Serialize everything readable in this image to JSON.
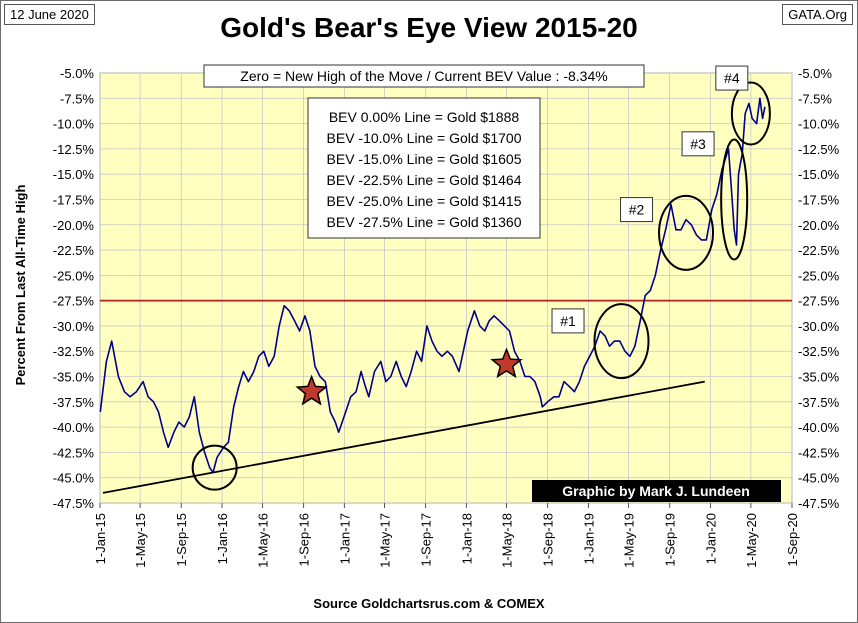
{
  "header": {
    "date": "12 June 2020",
    "site": "GATA.Org",
    "title": "Gold's Bear's Eye View 2015-20",
    "source": "Source Goldchartsrus.com & COMEX"
  },
  "chart_data": {
    "type": "line",
    "title": "Gold's Bear's Eye View 2015-20",
    "ylabel": "Percent  From  Last  All-Time  High",
    "xlabel": "",
    "ylim": [
      -47.5,
      -5.0
    ],
    "xlim": [
      "2015-01-01",
      "2020-09-01"
    ],
    "grid": true,
    "colors": {
      "plot_bg": "#ffffc0",
      "series": "#00008b",
      "reference_line": "#b22222",
      "trend": "#000000",
      "star": "#c0392b",
      "credit_bg": "#000000",
      "credit_text": "#ffffff"
    },
    "y_ticks": [
      "-5.0%",
      "-7.5%",
      "-10.0%",
      "-12.5%",
      "-15.0%",
      "-17.5%",
      "-20.0%",
      "-22.5%",
      "-25.0%",
      "-27.5%",
      "-30.0%",
      "-32.5%",
      "-35.0%",
      "-37.5%",
      "-40.0%",
      "-42.5%",
      "-45.0%",
      "-47.5%"
    ],
    "x_ticks": [
      "1-Jan-15",
      "1-May-15",
      "1-Sep-15",
      "1-Jan-16",
      "1-May-16",
      "1-Sep-16",
      "1-Jan-17",
      "1-May-17",
      "1-Sep-17",
      "1-Jan-18",
      "1-May-18",
      "1-Sep-18",
      "1-Jan-19",
      "1-May-19",
      "1-Sep-19",
      "1-Jan-20",
      "1-May-20",
      "1-Sep-20"
    ],
    "reference_line": {
      "y": -27.5
    },
    "trend_line": {
      "start": [
        "2015-01-10",
        -46.5
      ],
      "end": [
        "2019-12-15",
        -35.5
      ]
    },
    "series": [
      {
        "x": [
          "2015-01-02",
          "2015-01-20",
          "2015-02-05",
          "2015-02-25",
          "2015-03-15",
          "2015-04-01",
          "2015-04-20",
          "2015-05-10",
          "2015-05-25",
          "2015-06-10",
          "2015-06-25",
          "2015-07-10",
          "2015-07-24",
          "2015-08-10",
          "2015-08-25",
          "2015-09-10",
          "2015-09-25",
          "2015-10-10",
          "2015-10-25",
          "2015-11-10",
          "2015-11-25",
          "2015-12-05",
          "2015-12-17",
          "2016-01-05",
          "2016-01-20",
          "2016-02-05",
          "2016-02-20",
          "2016-03-05",
          "2016-03-20",
          "2016-04-05",
          "2016-04-20",
          "2016-05-05",
          "2016-05-20",
          "2016-06-05",
          "2016-06-20",
          "2016-07-05",
          "2016-07-20",
          "2016-08-05",
          "2016-08-20",
          "2016-09-05",
          "2016-09-20",
          "2016-10-05",
          "2016-10-20",
          "2016-11-05",
          "2016-11-20",
          "2016-12-05",
          "2016-12-15",
          "2017-01-05",
          "2017-01-20",
          "2017-02-05",
          "2017-02-20",
          "2017-03-05",
          "2017-03-15",
          "2017-04-01",
          "2017-04-20",
          "2017-05-05",
          "2017-05-20",
          "2017-06-05",
          "2017-06-20",
          "2017-07-05",
          "2017-07-20",
          "2017-08-05",
          "2017-08-20",
          "2017-09-05",
          "2017-09-20",
          "2017-10-05",
          "2017-10-20",
          "2017-11-05",
          "2017-11-20",
          "2017-12-10",
          "2018-01-05",
          "2018-01-25",
          "2018-02-10",
          "2018-02-25",
          "2018-03-10",
          "2018-03-25",
          "2018-04-10",
          "2018-04-25",
          "2018-05-10",
          "2018-05-25",
          "2018-06-10",
          "2018-06-25",
          "2018-07-10",
          "2018-07-25",
          "2018-08-10",
          "2018-08-16",
          "2018-09-01",
          "2018-09-20",
          "2018-10-05",
          "2018-10-20",
          "2018-11-05",
          "2018-11-20",
          "2018-12-05",
          "2018-12-20",
          "2019-01-05",
          "2019-01-20",
          "2019-02-05",
          "2019-02-20",
          "2019-03-05",
          "2019-03-20",
          "2019-04-05",
          "2019-04-20",
          "2019-05-05",
          "2019-05-20",
          "2019-06-05",
          "2019-06-20",
          "2019-07-05",
          "2019-07-20",
          "2019-08-05",
          "2019-08-20",
          "2019-09-05",
          "2019-09-20",
          "2019-10-05",
          "2019-10-20",
          "2019-11-05",
          "2019-11-20",
          "2019-12-05",
          "2019-12-20",
          "2020-01-05",
          "2020-01-20",
          "2020-02-05",
          "2020-02-24",
          "2020-03-05",
          "2020-03-12",
          "2020-03-19",
          "2020-03-25",
          "2020-04-05",
          "2020-04-14",
          "2020-04-25",
          "2020-05-05",
          "2020-05-18",
          "2020-05-28",
          "2020-06-05",
          "2020-06-12"
        ],
        "y": [
          -38.5,
          -33.5,
          -31.5,
          -35.0,
          -36.5,
          -37.0,
          -36.5,
          -35.5,
          -37.0,
          -37.5,
          -38.5,
          -40.5,
          -42.0,
          -40.5,
          -39.5,
          -40.0,
          -39.0,
          -37.0,
          -40.5,
          -42.5,
          -44.0,
          -44.5,
          -43.0,
          -42.0,
          -41.5,
          -38.0,
          -36.0,
          -34.5,
          -35.5,
          -34.5,
          -33.0,
          -32.5,
          -34.0,
          -33.0,
          -30.0,
          -28.0,
          -28.5,
          -29.5,
          -30.5,
          -29.0,
          -30.5,
          -34.0,
          -35.0,
          -35.5,
          -38.5,
          -39.5,
          -40.5,
          -38.5,
          -37.0,
          -36.5,
          -34.5,
          -36.0,
          -37.0,
          -34.5,
          -33.5,
          -35.5,
          -35.0,
          -33.5,
          -35.0,
          -36.0,
          -34.5,
          -32.5,
          -33.5,
          -30.0,
          -31.5,
          -32.5,
          -33.0,
          -32.5,
          -33.0,
          -34.5,
          -30.5,
          -28.5,
          -30.0,
          -30.5,
          -29.5,
          -29.0,
          -29.5,
          -30.0,
          -30.5,
          -32.5,
          -33.5,
          -35.0,
          -35.0,
          -35.5,
          -37.0,
          -38.0,
          -37.5,
          -37.0,
          -37.0,
          -35.5,
          -36.0,
          -36.5,
          -35.5,
          -34.0,
          -33.0,
          -32.0,
          -30.5,
          -31.0,
          -32.0,
          -31.5,
          -31.5,
          -32.5,
          -33.0,
          -32.0,
          -29.5,
          -27.0,
          -26.5,
          -25.0,
          -22.5,
          -20.5,
          -18.0,
          -20.5,
          -20.5,
          -19.5,
          -20.0,
          -21.0,
          -21.5,
          -21.5,
          -18.5,
          -17.0,
          -14.5,
          -12.5,
          -17.0,
          -20.5,
          -22.0,
          -15.0,
          -13.0,
          -9.0,
          -8.0,
          -9.5,
          -10.0,
          -7.5,
          -9.5,
          -8.34
        ]
      }
    ],
    "annotations": {
      "top_box": "Zero = New High of the Move / Current  BEV Value : -8.34%",
      "bev_lines": [
        "BEV 0.00% Line = Gold $1888",
        "BEV -10.0% Line = Gold $1700",
        "BEV -15.0% Line = Gold $1605",
        "BEV -22.5% Line = Gold $1464",
        "BEV -25.0% Line = Gold $1415",
        "BEV -27.5% Line = Gold $1360"
      ],
      "labels": [
        {
          "text": "#1",
          "x": "2018-11-01",
          "y": -29.5
        },
        {
          "text": "#2",
          "x": "2019-05-25",
          "y": -18.5
        },
        {
          "text": "#3",
          "x": "2019-11-25",
          "y": -12.0
        },
        {
          "text": "#4",
          "x": "2020-03-05",
          "y": -5.5
        }
      ],
      "circles": [
        {
          "x": "2015-12-10",
          "y": -44.0
        },
        {
          "x": "2019-04-10",
          "y": -31.5
        },
        {
          "x": "2019-10-20",
          "y": -20.8
        },
        {
          "x": "2020-03-12",
          "y": -17.5
        },
        {
          "x": "2020-05-01",
          "y": -9.0
        }
      ],
      "stars": [
        {
          "x": "2016-09-25",
          "y": -36.5
        },
        {
          "x": "2018-05-01",
          "y": -33.8
        }
      ],
      "credit": "Graphic by Mark J. Lundeen"
    }
  }
}
